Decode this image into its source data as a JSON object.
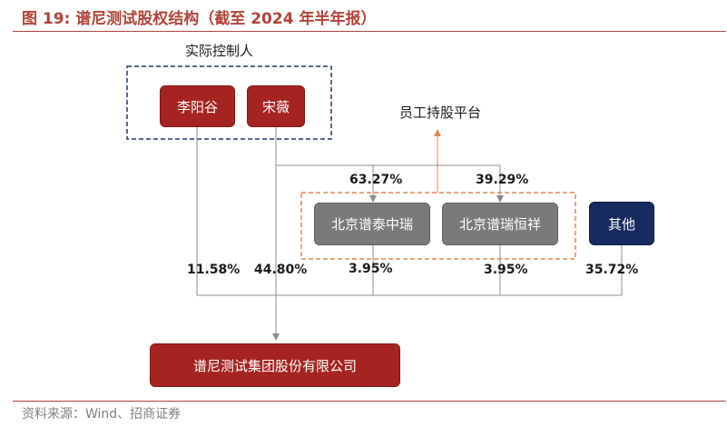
{
  "title": "图 19:  谱尼测试股权结构（截至 2024 年半年报）",
  "source": "资料来源：Wind、招商证券",
  "controller_group_label": "实际控制人",
  "platform_group_label": "员工持股平台",
  "entities": {
    "li_yanggu": "李阳谷",
    "song_wei": "宋薇",
    "puni_taizhongrui": "北京谱泰中瑞",
    "puni_ruihengxiang": "北京谱瑞恒祥",
    "others": "其他",
    "company": "谱尼测试集团股份有限公司"
  },
  "percentages": {
    "song_to_taizhongrui": "63.27%",
    "song_to_ruihengxiang": "39.29%",
    "li_to_company": "11.58%",
    "song_to_company": "44.80%",
    "taizhongrui_to_company": "3.95%",
    "ruihengxiang_to_company": "3.95%",
    "others_to_company": "35.72%"
  },
  "colors": {
    "accent_red": "#b0433a",
    "box_red": "#a52422",
    "box_grey": "#7a7a7a",
    "box_navy": "#172a60",
    "controller_border": "#1f3864",
    "platform_border": "#e2874f"
  }
}
